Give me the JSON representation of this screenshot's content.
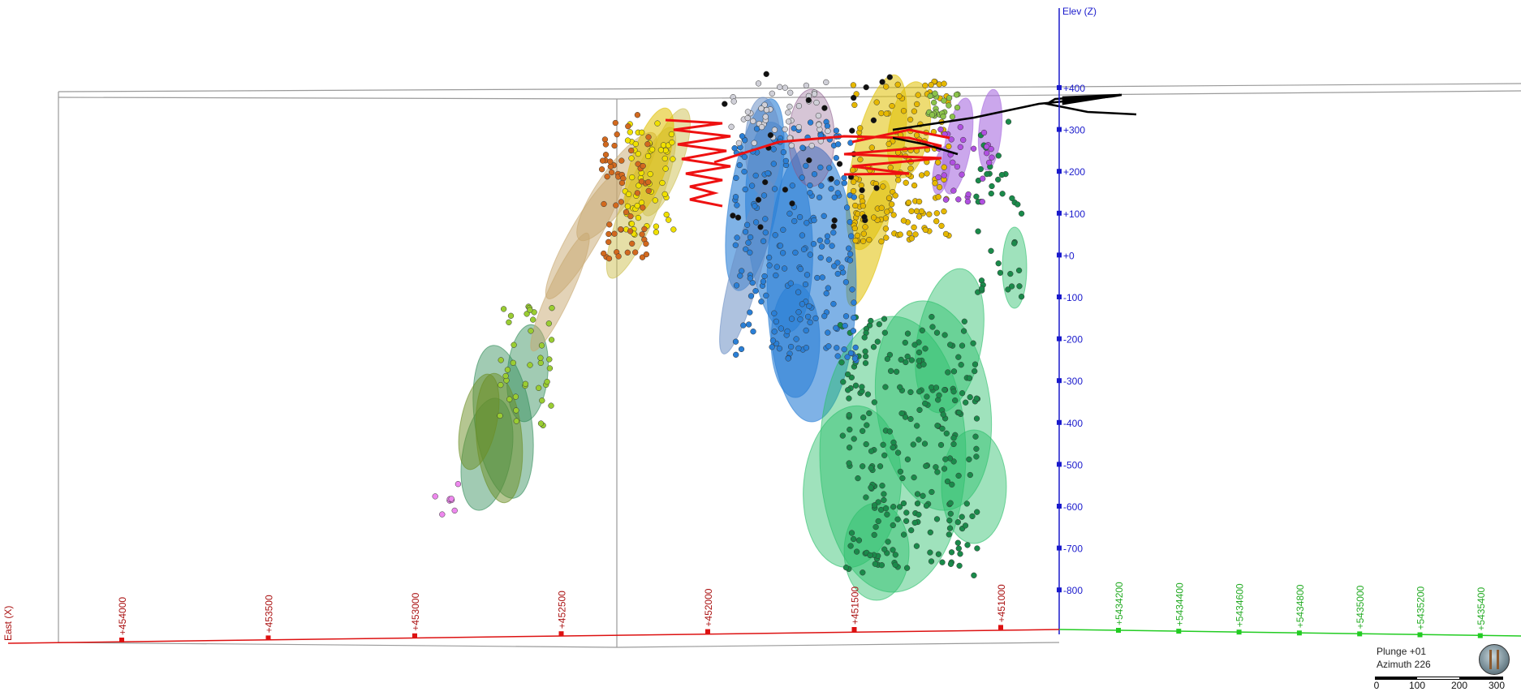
{
  "view": {
    "vertical_axis_label": "Elev (Z)",
    "x_axis_label": "East (X)",
    "elevation_ticks": [
      "+400",
      "+300",
      "+200",
      "+100",
      "+0",
      "-100",
      "-200",
      "-300",
      "-400",
      "-500",
      "-600",
      "-700",
      "-800"
    ],
    "easting_ticks": [
      "+454000",
      "+453500",
      "+453000",
      "+452500",
      "+452000",
      "+451500",
      "+451000"
    ],
    "northing_ticks": [
      "+5434200",
      "+5434400",
      "+5434600",
      "+5434800",
      "+5435000",
      "+5435200",
      "+5435400"
    ],
    "colors": {
      "z_axis": "#1a1acc",
      "x_axis": "#dd1111",
      "y_axis": "#22cc22",
      "box_outline": "#9a9a9a"
    }
  },
  "hud": {
    "plunge_text": "Plunge +01",
    "azimuth_text": "Azimuth 226",
    "scale_labels": [
      "0",
      "100",
      "200",
      "300"
    ],
    "compass_icon": "orientation-widget-icon"
  }
}
